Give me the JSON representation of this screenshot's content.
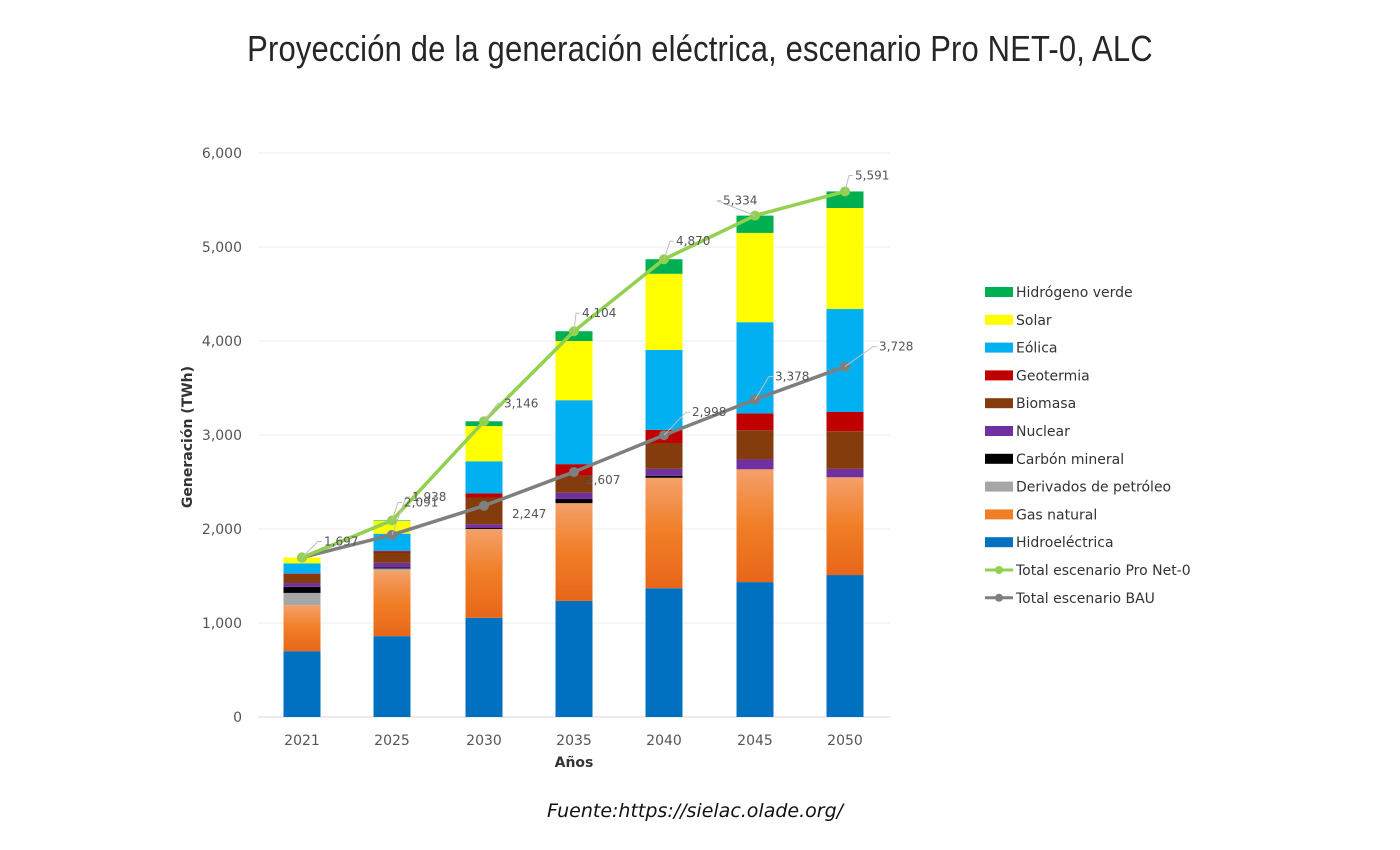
{
  "chart_data": {
    "type": "bar",
    "stacked": true,
    "title": "Proyección de la generación eléctrica, escenario Pro NET-0, ALC",
    "xlabel": "Años",
    "ylabel": "Generación (TWh)",
    "ylim": [
      0,
      6000
    ],
    "yticks": [
      0,
      1000,
      2000,
      3000,
      4000,
      5000,
      6000
    ],
    "ytick_labels": [
      "0",
      "1,000",
      "2,000",
      "3,000",
      "4,000",
      "5,000",
      "6,000"
    ],
    "grid": true,
    "legend_position": "right",
    "categories": [
      "2021",
      "2025",
      "2030",
      "2035",
      "2040",
      "2045",
      "2050"
    ],
    "series": [
      {
        "name": "Hidroeléctrica",
        "color": "#0070C0",
        "values": [
          700,
          860,
          1055,
          1235,
          1370,
          1435,
          1510
        ]
      },
      {
        "name": "Gas natural",
        "color": "#F07E26",
        "values": [
          490,
          700,
          945,
          1040,
          1175,
          1200,
          1040
        ]
      },
      {
        "name": "Derivados de petróleo",
        "color": "#A6A6A6",
        "values": [
          130,
          20,
          0,
          0,
          0,
          0,
          0
        ]
      },
      {
        "name": "Carbón mineral",
        "color": "#000000",
        "values": [
          65,
          10,
          10,
          45,
          20,
          0,
          0
        ]
      },
      {
        "name": "Nuclear",
        "color": "#7030A0",
        "values": [
          40,
          50,
          40,
          65,
          75,
          105,
          90
        ]
      },
      {
        "name": "Biomasa",
        "color": "#843C0C",
        "values": [
          90,
          110,
          285,
          180,
          275,
          310,
          400
        ]
      },
      {
        "name": "Geotermia",
        "color": "#C00000",
        "values": [
          10,
          15,
          45,
          125,
          140,
          180,
          205
        ]
      },
      {
        "name": "Eólica",
        "color": "#00B0F0",
        "values": [
          110,
          185,
          340,
          680,
          850,
          970,
          1095
        ]
      },
      {
        "name": "Solar",
        "color": "#FFFF00",
        "values": [
          62,
          135,
          375,
          630,
          810,
          950,
          1075
        ]
      },
      {
        "name": "Hidrógeno verde",
        "color": "#00B050",
        "values": [
          0,
          6,
          51,
          104,
          155,
          184,
          176
        ]
      }
    ],
    "lines": [
      {
        "name": "Total escenario Pro Net-0",
        "color": "#92D050",
        "values": [
          1697,
          2091,
          3146,
          4104,
          4870,
          5334,
          5591
        ],
        "labels": [
          "",
          "2,091",
          "3,146",
          "4,104",
          "4,870",
          "5,334",
          "5,591"
        ]
      },
      {
        "name": "Total escenario BAU",
        "color": "#7F7F7F",
        "values": [
          1697,
          1938,
          2247,
          2607,
          2998,
          3378,
          3728
        ],
        "labels": [
          "1,697",
          "1,938",
          "2,247",
          "2,607",
          "2,998",
          "3,378",
          "3,728"
        ]
      }
    ],
    "legend_order": [
      "Hidrógeno verde",
      "Solar",
      "Eólica",
      "Geotermia",
      "Biomasa",
      "Nuclear",
      "Carbón mineral",
      "Derivados de petróleo",
      "Gas natural",
      "Hidroeléctrica",
      "Total escenario Pro Net-0",
      "Total escenario BAU"
    ]
  },
  "source": "Fuente:https://sielac.olade.org/"
}
